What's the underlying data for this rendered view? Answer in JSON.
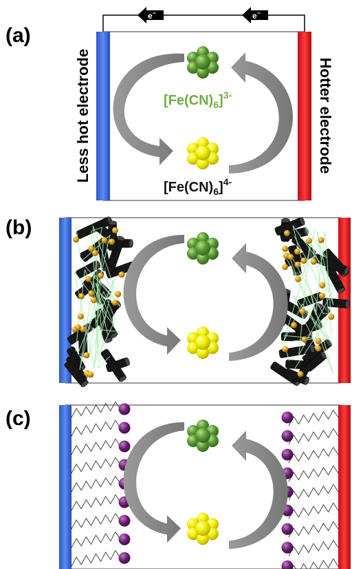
{
  "panels": {
    "a": {
      "label": "(a)"
    },
    "b": {
      "label": "(b)"
    },
    "c": {
      "label": "(c)"
    }
  },
  "electrodes": {
    "left": "Less hot electrode",
    "right": "Hotter electrode",
    "left_color": "#3a6be0",
    "right_color": "#e4141c"
  },
  "electron": {
    "base": "e",
    "charge": "−"
  },
  "species": {
    "oxidized": {
      "formula": "[Fe(CN)",
      "subscript": "6",
      "bracket": "]",
      "charge": "3-",
      "color": "#70ad47"
    },
    "reduced": {
      "formula": "[Fe(CN)",
      "subscript": "6",
      "bracket": "]",
      "charge": "4-",
      "color": "#111111"
    }
  },
  "colors": {
    "oxidized_sphere": "#4e8a2e",
    "reduced_sphere": "#e6e000",
    "arrow": "#8c8c8c",
    "cnt": "#151515",
    "nanoparticle": "#d49a10",
    "chain_head": "#5a1560"
  }
}
